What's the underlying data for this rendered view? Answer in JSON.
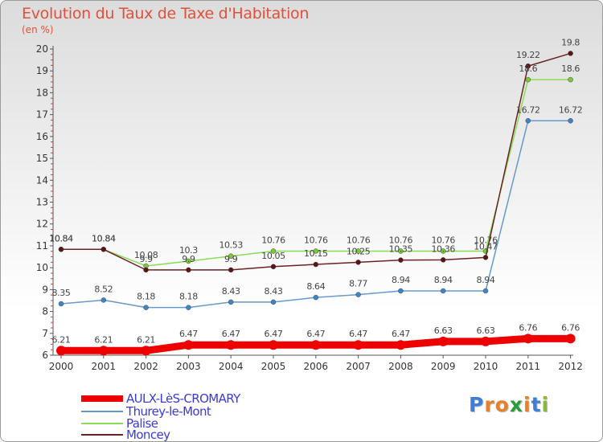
{
  "chart_data": {
    "type": "line",
    "title": "Evolution du Taux de Taxe d'Habitation",
    "subtitle": "(en %)",
    "xlabel": "",
    "ylabel": "",
    "categories": [
      "2000",
      "2001",
      "2002",
      "2003",
      "2004",
      "2005",
      "2006",
      "2007",
      "2008",
      "2009",
      "2010",
      "2011",
      "2012"
    ],
    "ylim": [
      6,
      20
    ],
    "yticks": [
      6,
      7,
      8,
      9,
      10,
      11,
      12,
      13,
      14,
      15,
      16,
      17,
      18,
      19,
      20
    ],
    "grid": false,
    "legend_position": "bottom-left",
    "series": [
      {
        "name": "AULX-LèS-CROMARY",
        "color": "#ee0000",
        "marker_color": "#ee0000",
        "values": [
          6.21,
          6.21,
          6.21,
          6.47,
          6.47,
          6.47,
          6.47,
          6.47,
          6.47,
          6.63,
          6.63,
          6.76,
          6.76
        ],
        "labels": [
          "6.21",
          "6.21",
          "6.21",
          "6.47",
          "6.47",
          "6.47",
          "6.47",
          "6.47",
          "6.47",
          "6.63",
          "6.63",
          "6.76",
          "6.76"
        ]
      },
      {
        "name": "Thurey-le-Mont",
        "color": "#6699cc",
        "marker_color": "#3d85c6",
        "values": [
          8.35,
          8.52,
          8.18,
          8.18,
          8.43,
          8.43,
          8.64,
          8.77,
          8.94,
          8.94,
          8.94,
          16.72,
          16.72
        ],
        "labels": [
          "8.35",
          "8.52",
          "8.18",
          "8.18",
          "8.43",
          "8.43",
          "8.64",
          "8.77",
          "8.94",
          "8.94",
          "8.94",
          "16.72",
          "16.72"
        ]
      },
      {
        "name": "Palise",
        "color": "#88dd55",
        "marker_color": "#77cc33",
        "values": [
          10.84,
          10.84,
          10.08,
          10.3,
          10.53,
          10.76,
          10.76,
          10.76,
          10.76,
          10.76,
          10.76,
          18.6,
          18.6
        ],
        "labels": [
          "10.84",
          "10.84",
          "10.08",
          "10.3",
          "10.53",
          "10.76",
          "10.76",
          "10.76",
          "10.76",
          "10.76",
          "10.76",
          "18.6",
          "18.6"
        ]
      },
      {
        "name": "Moncey",
        "color": "#6b2222",
        "marker_color": "#5a1414",
        "values": [
          10.84,
          10.84,
          9.9,
          9.9,
          9.9,
          10.05,
          10.15,
          10.25,
          10.35,
          10.36,
          10.47,
          19.22,
          19.8
        ],
        "labels": [
          "10.84",
          "10.84",
          "9.9",
          "9.9",
          "9.9",
          "10.05",
          "10.15",
          "10.25",
          "10.35",
          "10.36",
          "10.47",
          "19.22",
          "19.8"
        ]
      }
    ]
  },
  "logo": {
    "letters": [
      "P",
      "r",
      "o",
      "x",
      "i",
      "t",
      "i"
    ],
    "colors": [
      "#3d7fd6",
      "#e8802a",
      "#e8802a",
      "#2a9a3a",
      "#e8802a",
      "#3d7fd6",
      "#88bb33"
    ]
  }
}
